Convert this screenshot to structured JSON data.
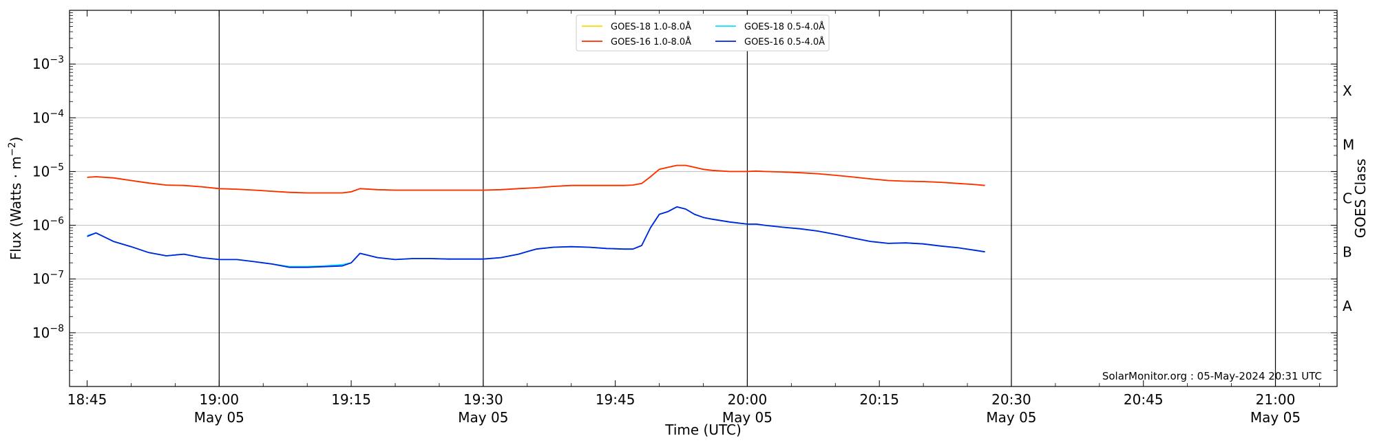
{
  "chart_data": {
    "type": "line",
    "xlabel": "Time (UTC)",
    "ylabel": "Flux (Watts · m",
    "ylabel_sup": "−2",
    "ylabel_close": ")",
    "y2label": "GOES Class",
    "yscale": "log",
    "xlim": [
      "18:43",
      "21:07"
    ],
    "ylim": [
      1e-09,
      0.01
    ],
    "grid": "horizontal",
    "legend_position": "top-center",
    "annotation": "SolarMonitor.org : 05-May-2024 20:31 UTC",
    "x_ticks": [
      {
        "time": "18:45",
        "label": "18:45",
        "sub": ""
      },
      {
        "time": "19:00",
        "label": "19:00",
        "sub": "May 05"
      },
      {
        "time": "19:15",
        "label": "19:15",
        "sub": ""
      },
      {
        "time": "19:30",
        "label": "19:30",
        "sub": "May 05"
      },
      {
        "time": "19:45",
        "label": "19:45",
        "sub": ""
      },
      {
        "time": "20:00",
        "label": "20:00",
        "sub": "May 05"
      },
      {
        "time": "20:15",
        "label": "20:15",
        "sub": ""
      },
      {
        "time": "20:30",
        "label": "20:30",
        "sub": "May 05"
      },
      {
        "time": "20:45",
        "label": "20:45",
        "sub": ""
      },
      {
        "time": "21:00",
        "label": "21:00",
        "sub": "May 05"
      }
    ],
    "vlines": [
      "19:00",
      "19:30",
      "20:00",
      "20:30",
      "21:00"
    ],
    "y_ticks": [
      {
        "value": 1e-08,
        "base": "10",
        "exp": "−8"
      },
      {
        "value": 1e-07,
        "base": "10",
        "exp": "−7"
      },
      {
        "value": 1e-06,
        "base": "10",
        "exp": "−6"
      },
      {
        "value": 1e-05,
        "base": "10",
        "exp": "−5"
      },
      {
        "value": 0.0001,
        "base": "10",
        "exp": "−4"
      },
      {
        "value": 0.001,
        "base": "10",
        "exp": "−3"
      }
    ],
    "goes_classes": [
      {
        "label": "A",
        "value": 3.16e-08
      },
      {
        "label": "B",
        "value": 3.16e-07
      },
      {
        "label": "C",
        "value": 3.16e-06
      },
      {
        "label": "M",
        "value": 3.16e-05
      },
      {
        "label": "X",
        "value": 0.000316
      }
    ],
    "series": [
      {
        "name": "GOES-18 1.0-8.0Å",
        "color": "#ffd700",
        "x": [
          "18:45",
          "18:46",
          "18:48",
          "18:50",
          "18:52",
          "18:54",
          "18:56",
          "18:58",
          "19:00",
          "19:02",
          "19:04",
          "19:06",
          "19:08",
          "19:10",
          "19:12",
          "19:14",
          "19:15",
          "19:16",
          "19:18",
          "19:20",
          "19:22",
          "19:24",
          "19:26",
          "19:28",
          "19:30",
          "19:32",
          "19:34",
          "19:36",
          "19:38",
          "19:40",
          "19:42",
          "19:44",
          "19:46",
          "19:47",
          "19:48",
          "19:49",
          "19:50",
          "19:51",
          "19:52",
          "19:53",
          "19:54",
          "19:55",
          "19:56",
          "19:58",
          "20:00",
          "20:01",
          "20:02",
          "20:04",
          "20:06",
          "20:08",
          "20:10",
          "20:12",
          "20:14",
          "20:16",
          "20:18",
          "20:20",
          "20:22",
          "20:24",
          "20:26",
          "20:27"
        ],
        "y": [
          7.8e-06,
          8e-06,
          7.6e-06,
          6.8e-06,
          6.1e-06,
          5.6e-06,
          5.5e-06,
          5.2e-06,
          4.8e-06,
          4.7e-06,
          4.5e-06,
          4.3e-06,
          4.1e-06,
          4e-06,
          4e-06,
          4e-06,
          4.2e-06,
          4.8e-06,
          4.6e-06,
          4.5e-06,
          4.5e-06,
          4.5e-06,
          4.5e-06,
          4.5e-06,
          4.5e-06,
          4.6e-06,
          4.8e-06,
          5e-06,
          5.3e-06,
          5.5e-06,
          5.5e-06,
          5.5e-06,
          5.5e-06,
          5.6e-06,
          6e-06,
          8e-06,
          1.1e-05,
          1.2e-05,
          1.3e-05,
          1.3e-05,
          1.2e-05,
          1.1e-05,
          1.05e-05,
          1e-05,
          1e-05,
          1.02e-05,
          1e-05,
          9.8e-06,
          9.5e-06,
          9.1e-06,
          8.5e-06,
          7.9e-06,
          7.3e-06,
          6.8e-06,
          6.6e-06,
          6.5e-06,
          6.3e-06,
          6e-06,
          5.7e-06,
          5.5e-06
        ]
      },
      {
        "name": "GOES-18 0.5-4.0Å",
        "color": "#00e5ff",
        "x": [
          "18:45",
          "18:46",
          "18:48",
          "18:50",
          "18:52",
          "18:54",
          "18:56",
          "18:58",
          "19:00",
          "19:02",
          "19:04",
          "19:06",
          "19:08",
          "19:10",
          "19:12",
          "19:14",
          "19:15",
          "19:16",
          "19:18",
          "19:20",
          "19:22",
          "19:24",
          "19:26",
          "19:28",
          "19:30",
          "19:32",
          "19:34",
          "19:36",
          "19:38",
          "19:40",
          "19:42",
          "19:44",
          "19:46",
          "19:47",
          "19:48",
          "19:49",
          "19:50",
          "19:51",
          "19:52",
          "19:53",
          "19:54",
          "19:55",
          "19:56",
          "19:58",
          "20:00",
          "20:01",
          "20:02",
          "20:04",
          "20:06",
          "20:08",
          "20:10",
          "20:12",
          "20:14",
          "20:16",
          "20:18",
          "20:20",
          "20:22",
          "20:24",
          "20:26",
          "20:27"
        ],
        "y": [
          6.4e-07,
          7.2e-07,
          5e-07,
          4e-07,
          3.1e-07,
          2.7e-07,
          2.9e-07,
          2.5e-07,
          2.3e-07,
          2.3e-07,
          2.1e-07,
          1.9e-07,
          1.7e-07,
          1.7e-07,
          1.75e-07,
          1.85e-07,
          2e-07,
          3e-07,
          2.5e-07,
          2.3e-07,
          2.4e-07,
          2.4e-07,
          2.35e-07,
          2.35e-07,
          2.35e-07,
          2.5e-07,
          2.9e-07,
          3.6e-07,
          3.9e-07,
          4e-07,
          3.9e-07,
          3.7e-07,
          3.6e-07,
          3.6e-07,
          4.2e-07,
          9e-07,
          1.6e-06,
          1.8e-06,
          2.2e-06,
          2e-06,
          1.6e-06,
          1.4e-06,
          1.3e-06,
          1.15e-06,
          1.05e-06,
          1.05e-06,
          1e-06,
          9.2e-07,
          8.6e-07,
          7.8e-07,
          6.8e-07,
          5.8e-07,
          5e-07,
          4.6e-07,
          4.7e-07,
          4.5e-07,
          4.1e-07,
          3.8e-07,
          3.4e-07,
          3.2e-07
        ]
      },
      {
        "name": "GOES-16 1.0-8.0Å",
        "color": "#ff2a00",
        "x": [
          "18:45",
          "18:46",
          "18:48",
          "18:50",
          "18:52",
          "18:54",
          "18:56",
          "18:58",
          "19:00",
          "19:02",
          "19:04",
          "19:06",
          "19:08",
          "19:10",
          "19:12",
          "19:14",
          "19:15",
          "19:16",
          "19:18",
          "19:20",
          "19:22",
          "19:24",
          "19:26",
          "19:28",
          "19:30",
          "19:32",
          "19:34",
          "19:36",
          "19:38",
          "19:40",
          "19:42",
          "19:44",
          "19:46",
          "19:47",
          "19:48",
          "19:49",
          "19:50",
          "19:51",
          "19:52",
          "19:53",
          "19:54",
          "19:55",
          "19:56",
          "19:58",
          "20:00",
          "20:01",
          "20:02",
          "20:04",
          "20:06",
          "20:08",
          "20:10",
          "20:12",
          "20:14",
          "20:16",
          "20:18",
          "20:20",
          "20:22",
          "20:24",
          "20:26",
          "20:27"
        ],
        "y": [
          7.8e-06,
          8e-06,
          7.6e-06,
          6.8e-06,
          6.1e-06,
          5.6e-06,
          5.5e-06,
          5.2e-06,
          4.8e-06,
          4.7e-06,
          4.5e-06,
          4.3e-06,
          4.1e-06,
          4e-06,
          4e-06,
          4e-06,
          4.2e-06,
          4.8e-06,
          4.6e-06,
          4.5e-06,
          4.5e-06,
          4.5e-06,
          4.5e-06,
          4.5e-06,
          4.5e-06,
          4.6e-06,
          4.8e-06,
          5e-06,
          5.3e-06,
          5.5e-06,
          5.5e-06,
          5.5e-06,
          5.5e-06,
          5.6e-06,
          6e-06,
          8e-06,
          1.1e-05,
          1.2e-05,
          1.3e-05,
          1.3e-05,
          1.2e-05,
          1.1e-05,
          1.05e-05,
          1e-05,
          1e-05,
          1.02e-05,
          1e-05,
          9.8e-06,
          9.5e-06,
          9.1e-06,
          8.5e-06,
          7.9e-06,
          7.3e-06,
          6.8e-06,
          6.6e-06,
          6.5e-06,
          6.3e-06,
          6e-06,
          5.7e-06,
          5.5e-06
        ]
      },
      {
        "name": "GOES-16 0.5-4.0Å",
        "color": "#0022dd",
        "x": [
          "18:45",
          "18:46",
          "18:48",
          "18:50",
          "18:52",
          "18:54",
          "18:56",
          "18:58",
          "19:00",
          "19:02",
          "19:04",
          "19:06",
          "19:08",
          "19:10",
          "19:12",
          "19:14",
          "19:15",
          "19:16",
          "19:18",
          "19:20",
          "19:22",
          "19:24",
          "19:26",
          "19:28",
          "19:30",
          "19:32",
          "19:34",
          "19:36",
          "19:38",
          "19:40",
          "19:42",
          "19:44",
          "19:46",
          "19:47",
          "19:48",
          "19:49",
          "19:50",
          "19:51",
          "19:52",
          "19:53",
          "19:54",
          "19:55",
          "19:56",
          "19:58",
          "20:00",
          "20:01",
          "20:02",
          "20:04",
          "20:06",
          "20:08",
          "20:10",
          "20:12",
          "20:14",
          "20:16",
          "20:18",
          "20:20",
          "20:22",
          "20:24",
          "20:26",
          "20:27"
        ],
        "y": [
          6.2e-07,
          7.2e-07,
          5e-07,
          4e-07,
          3.1e-07,
          2.7e-07,
          2.9e-07,
          2.5e-07,
          2.3e-07,
          2.3e-07,
          2.1e-07,
          1.9e-07,
          1.65e-07,
          1.65e-07,
          1.7e-07,
          1.75e-07,
          2e-07,
          3e-07,
          2.5e-07,
          2.3e-07,
          2.4e-07,
          2.4e-07,
          2.35e-07,
          2.35e-07,
          2.35e-07,
          2.5e-07,
          2.9e-07,
          3.6e-07,
          3.9e-07,
          4e-07,
          3.9e-07,
          3.7e-07,
          3.6e-07,
          3.6e-07,
          4.2e-07,
          9e-07,
          1.6e-06,
          1.8e-06,
          2.2e-06,
          2e-06,
          1.6e-06,
          1.4e-06,
          1.3e-06,
          1.15e-06,
          1.05e-06,
          1.05e-06,
          1e-06,
          9.2e-07,
          8.6e-07,
          7.8e-07,
          6.8e-07,
          5.8e-07,
          5e-07,
          4.6e-07,
          4.7e-07,
          4.5e-07,
          4.1e-07,
          3.8e-07,
          3.4e-07,
          3.2e-07
        ]
      }
    ]
  }
}
